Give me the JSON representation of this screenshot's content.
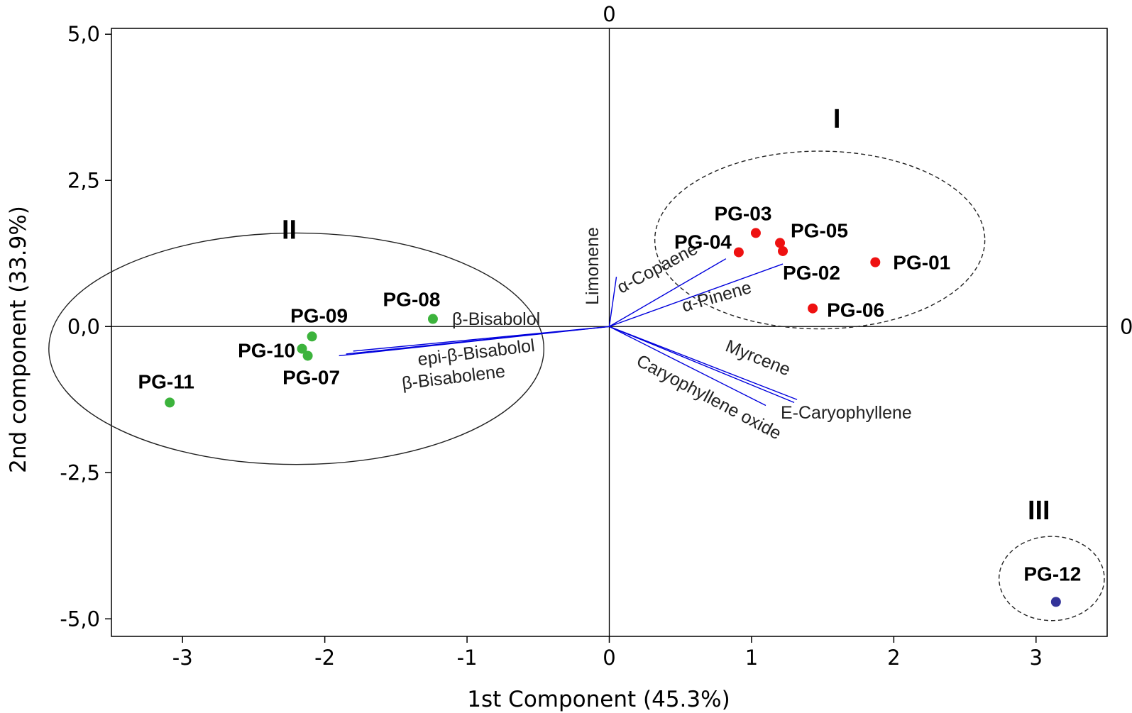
{
  "chart_data": {
    "type": "scatter",
    "xlabel": "1st Component (45.3%)",
    "ylabel": "2nd component (33.9%)",
    "xlim": [
      -3.5,
      3.5
    ],
    "ylim": [
      -5.3,
      5.1
    ],
    "x_ticks": [
      -3,
      -2,
      -1,
      0,
      1,
      2,
      3
    ],
    "x_tick_labels": [
      "-3",
      "-2",
      "-1",
      "0",
      "1",
      "2",
      "3"
    ],
    "y_ticks": [
      5,
      2.5,
      0,
      -2.5,
      -5
    ],
    "y_tick_labels": [
      "5,0",
      "2,5",
      "0,0",
      "-2,5",
      "-5,0"
    ],
    "reference_line_labels": {
      "top": "0",
      "right": "0"
    },
    "colors": {
      "group_I": "#ee1111",
      "group_II": "#3cb33c",
      "group_III": "#333399",
      "loadings": "#0000dd"
    },
    "observations": [
      {
        "label": "PG-01",
        "x": 1.87,
        "y": 1.1,
        "group": "I"
      },
      {
        "label": "PG-02",
        "x": 1.22,
        "y": 1.29,
        "group": "I"
      },
      {
        "label": "PG-03",
        "x": 1.03,
        "y": 1.6,
        "group": "I"
      },
      {
        "label": "PG-04",
        "x": 0.91,
        "y": 1.27,
        "group": "I"
      },
      {
        "label": "PG-05",
        "x": 1.2,
        "y": 1.43,
        "group": "I"
      },
      {
        "label": "PG-06",
        "x": 1.43,
        "y": 0.31,
        "group": "I"
      },
      {
        "label": "PG-07",
        "x": -2.12,
        "y": -0.5,
        "group": "II"
      },
      {
        "label": "PG-08",
        "x": -1.24,
        "y": 0.13,
        "group": "II"
      },
      {
        "label": "PG-09",
        "x": -2.09,
        "y": -0.17,
        "group": "II"
      },
      {
        "label": "PG-10",
        "x": -2.16,
        "y": -0.38,
        "group": "II"
      },
      {
        "label": "PG-11",
        "x": -3.09,
        "y": -1.3,
        "group": "II"
      },
      {
        "label": "PG-12",
        "x": 3.14,
        "y": -4.71,
        "group": "III"
      }
    ],
    "loadings": [
      {
        "name": "Limonene",
        "x": 0.05,
        "y": 0.85
      },
      {
        "name": "α-Copaene",
        "x": 0.82,
        "y": 1.16
      },
      {
        "name": "α-Pinene",
        "x": 1.22,
        "y": 1.07
      },
      {
        "name": "β-Bisabolol",
        "x": -1.8,
        "y": -0.42
      },
      {
        "name": "epi-β-Bisabolol",
        "x": -1.85,
        "y": -0.47
      },
      {
        "name": "β-Bisabolene",
        "x": -1.9,
        "y": -0.5
      },
      {
        "name": "Myrcene",
        "x": 1.3,
        "y": -1.3
      },
      {
        "name": "E-Caryophyllene",
        "x": 1.32,
        "y": -1.25
      },
      {
        "name": "Caryophyllene oxide",
        "x": 1.1,
        "y": -1.35
      }
    ],
    "groups": [
      {
        "label": "I",
        "style": "dashed",
        "cx": 1.48,
        "cy": 1.48,
        "rx": 1.16,
        "ry": 1.52
      },
      {
        "label": "II",
        "style": "solid",
        "cx": -2.2,
        "cy": -0.38,
        "rx": 1.74,
        "ry": 1.98
      },
      {
        "label": "III",
        "style": "dashed",
        "cx": 3.11,
        "cy": -4.31,
        "rx": 0.37,
        "ry": 0.72
      }
    ]
  }
}
